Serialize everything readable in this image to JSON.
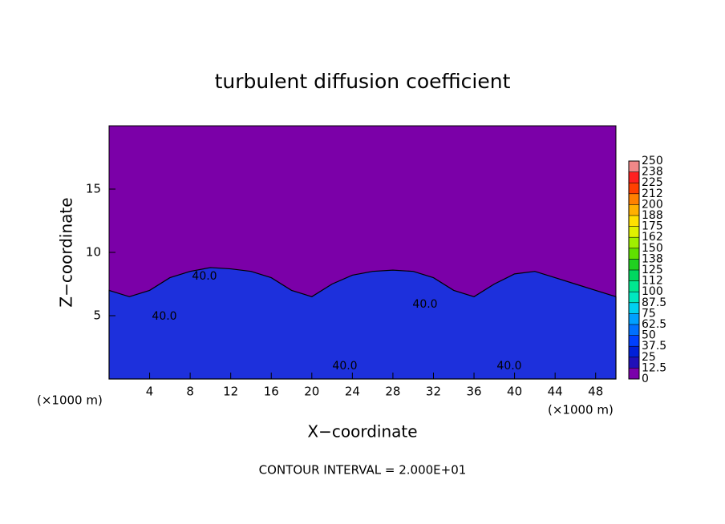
{
  "chart_data": {
    "type": "area",
    "title": "turbulent diffusion coefficient",
    "xlabel": "X−coordinate",
    "ylabel": "Z−coordinate",
    "xunit": "(×1000 m)",
    "footer": "CONTOUR INTERVAL = 2.000E+01",
    "xlim": [
      0,
      50
    ],
    "ylim": [
      0,
      20
    ],
    "xticks": [
      4,
      8,
      12,
      16,
      20,
      24,
      28,
      32,
      36,
      40,
      44,
      48
    ],
    "yticks": [
      5,
      10,
      15
    ],
    "background_color": "#7b00a8",
    "area_color": "#1d30dc",
    "x": [
      0,
      2,
      4,
      6,
      8,
      10,
      12,
      14,
      16,
      18,
      20,
      22,
      24,
      26,
      28,
      30,
      32,
      34,
      36,
      38,
      40,
      42,
      44,
      46,
      48,
      50
    ],
    "values": [
      7,
      6.5,
      7,
      8,
      8.5,
      8.8,
      8.7,
      8.5,
      8,
      7,
      6.5,
      7.5,
      8.2,
      8.5,
      8.6,
      8.5,
      8,
      7,
      6.5,
      7.5,
      8.3,
      8.5,
      8,
      7.5,
      7,
      6.5
    ],
    "contour_labels": [
      "40.0",
      "40.0",
      "40.0",
      "40.0",
      "40.0"
    ],
    "colorbar": {
      "ticks": [
        0,
        12.5,
        25,
        37.5,
        50,
        62.5,
        75,
        87.5,
        100,
        {
          "value": 112.5,
          "label": "112"
        },
        125,
        {
          "value": 137.5,
          "label": "138"
        },
        150,
        {
          "value": 162.5,
          "label": "162"
        },
        175,
        {
          "value": 187.5,
          "label": "188"
        },
        200,
        {
          "value": 212.5,
          "label": "212"
        },
        225,
        {
          "value": 237.5,
          "label": "238"
        },
        250
      ],
      "colors": [
        "#7a00aa",
        "#2010b8",
        "#0020d8",
        "#0040ff",
        "#0070ff",
        "#00a0ff",
        "#00d0f0",
        "#00e8c0",
        "#00e890",
        "#00d860",
        "#20d020",
        "#60e000",
        "#a0f000",
        "#e0f000",
        "#ffe000",
        "#ffb000",
        "#ff8000",
        "#ff4000",
        "#ff2020",
        "#f08888"
      ]
    }
  }
}
